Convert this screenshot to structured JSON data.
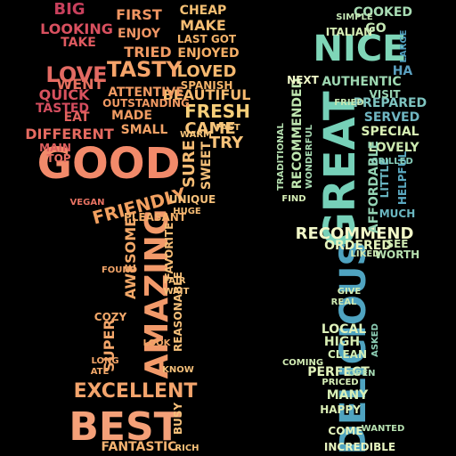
{
  "background": "#000000",
  "fork_words": [
    {
      "text": "GOOD",
      "color": "#f28a6a"
    },
    {
      "text": "AMAZING",
      "color": "#f29a6a"
    },
    {
      "text": "BEST",
      "color": "#f4a078"
    },
    {
      "text": "EXCELLENT",
      "color": "#f3a46c"
    },
    {
      "text": "FRIENDLY",
      "color": "#f2a060"
    },
    {
      "text": "TASTY",
      "color": "#f5a46a"
    },
    {
      "text": "LOVE",
      "color": "#e36a63"
    },
    {
      "text": "FRESH",
      "color": "#f7cf7a"
    },
    {
      "text": "CAME",
      "color": "#f6c47a"
    },
    {
      "text": "TRY",
      "color": "#f6c27a"
    },
    {
      "text": "LOVED",
      "color": "#f5b86f"
    },
    {
      "text": "BEAUTIFUL",
      "color": "#f6ba70"
    },
    {
      "text": "ENJOYED",
      "color": "#f4ae66"
    },
    {
      "text": "SPANISH",
      "color": "#f5b46a"
    },
    {
      "text": "CHEAP",
      "color": "#f5c074"
    },
    {
      "text": "MAKE",
      "color": "#f5bd73"
    },
    {
      "text": "LAST GOT",
      "color": "#f3b26a"
    },
    {
      "text": "FIRST",
      "color": "#f09662"
    },
    {
      "text": "ENJOY",
      "color": "#ef9564"
    },
    {
      "text": "TRIED",
      "color": "#f09a63"
    },
    {
      "text": "LOOKING",
      "color": "#d9505f"
    },
    {
      "text": "TAKE",
      "color": "#df5a60"
    },
    {
      "text": "BIG",
      "color": "#c7405c"
    },
    {
      "text": "WENT",
      "color": "#e6705f"
    },
    {
      "text": "QUICK",
      "color": "#d8525e"
    },
    {
      "text": "TASTED",
      "color": "#d44d5e"
    },
    {
      "text": "EAT",
      "color": "#e1625e"
    },
    {
      "text": "DIFFERENT",
      "color": "#e56a60"
    },
    {
      "text": "MAIN",
      "color": "#de5e5e"
    },
    {
      "text": "TOP",
      "color": "#e66d62"
    },
    {
      "text": "ATTENTIVE",
      "color": "#f09a62"
    },
    {
      "text": "OUTSTANDING",
      "color": "#f09962"
    },
    {
      "text": "MADE",
      "color": "#f09b62"
    },
    {
      "text": "SMALL",
      "color": "#f2a266"
    },
    {
      "text": "SURE",
      "color": "#f6bc74"
    },
    {
      "text": "SWEET",
      "color": "#f6c17a"
    },
    {
      "text": "UNIQUE",
      "color": "#f6c07a"
    },
    {
      "text": "HUGE",
      "color": "#f6bc74"
    },
    {
      "text": "PLEASANT",
      "color": "#f4b06a"
    },
    {
      "text": "AWESOME",
      "color": "#f3a868"
    },
    {
      "text": "FAVORITE",
      "color": "#f5bb74"
    },
    {
      "text": "REASONABLE",
      "color": "#f6c07a"
    },
    {
      "text": "SUPER",
      "color": "#f3a66a"
    },
    {
      "text": "COZY",
      "color": "#f3a86a"
    },
    {
      "text": "FANTASTIC",
      "color": "#f5b472"
    },
    {
      "text": "BUSY",
      "color": "#f6c07a"
    },
    {
      "text": "RICH",
      "color": "#f6c27a"
    },
    {
      "text": "KNOW",
      "color": "#f6c07a"
    },
    {
      "text": "ATE",
      "color": "#f2a86a"
    },
    {
      "text": "FOUND",
      "color": "#f2a468"
    },
    {
      "text": "LONG",
      "color": "#f1a468"
    },
    {
      "text": "LOOK",
      "color": "#f2a868"
    },
    {
      "text": "FAIR",
      "color": "#f6c07a"
    },
    {
      "text": "WAIT",
      "color": "#f6c07a"
    },
    {
      "text": "WARM",
      "color": "#f6c47a"
    },
    {
      "text": "FAST",
      "color": "#f6c47a"
    },
    {
      "text": "VEGAN",
      "color": "#e77262"
    }
  ],
  "knife_words": [
    {
      "text": "GREAT",
      "color": "#76d0b8"
    },
    {
      "text": "NICE",
      "color": "#7fd6b8"
    },
    {
      "text": "DELICIOUS",
      "color": "#4fa3c0"
    },
    {
      "text": "RECOMMEND",
      "color": "#f2f8c8"
    },
    {
      "text": "RECOMMENDED",
      "color": "#bfe6b0"
    },
    {
      "text": "AUTHENTIC",
      "color": "#9ed8b2"
    },
    {
      "text": "PREPARED",
      "color": "#7ec4c0"
    },
    {
      "text": "SERVED",
      "color": "#6fb6c2"
    },
    {
      "text": "SPECIAL",
      "color": "#d8f0b4"
    },
    {
      "text": "LOVELY",
      "color": "#cce9b0"
    },
    {
      "text": "AFFORDABLE",
      "color": "#93d3b4"
    },
    {
      "text": "LITTLE",
      "color": "#68b4c0"
    },
    {
      "text": "HELPFUL",
      "color": "#5aa8c0"
    },
    {
      "text": "MUCH",
      "color": "#6ab6c0"
    },
    {
      "text": "ORDERED",
      "color": "#e6f4bc"
    },
    {
      "text": "SEE",
      "color": "#cfe9b2"
    },
    {
      "text": "WORTH",
      "color": "#b6e0b0"
    },
    {
      "text": "LOCAL",
      "color": "#dff2ba"
    },
    {
      "text": "HIGH",
      "color": "#d8efb4"
    },
    {
      "text": "CLEAN",
      "color": "#d2edb4"
    },
    {
      "text": "PERFECT",
      "color": "#e0f2ba"
    },
    {
      "text": "MANY",
      "color": "#d8f0b6"
    },
    {
      "text": "HAPPY",
      "color": "#dcefb6"
    },
    {
      "text": "COME",
      "color": "#e4f4bc"
    },
    {
      "text": "INCREDIBLE",
      "color": "#e8f5c0"
    },
    {
      "text": "COOKED",
      "color": "#a8dcb4"
    },
    {
      "text": "ITALIAN",
      "color": "#d8efb6"
    },
    {
      "text": "GO",
      "color": "#c4e6b4"
    },
    {
      "text": "HA",
      "color": "#5aa0c0"
    },
    {
      "text": "NEXT",
      "color": "#f0f8c8"
    },
    {
      "text": "VISIT",
      "color": "#9ad6b4"
    },
    {
      "text": "FRIED",
      "color": "#c8e8b2"
    },
    {
      "text": "FIND",
      "color": "#d6eeb6"
    },
    {
      "text": "COMING",
      "color": "#d2ecb4"
    },
    {
      "text": "GIVE",
      "color": "#d4eeb6"
    },
    {
      "text": "REAL",
      "color": "#cfe9b2"
    },
    {
      "text": "TRADITIONAL",
      "color": "#b6e0b0"
    },
    {
      "text": "WONDERFUL",
      "color": "#a8dab2"
    },
    {
      "text": "GRILLED",
      "color": "#86ccb8"
    },
    {
      "text": "LARGE",
      "color": "#4f9ebe"
    },
    {
      "text": "SIMPLE",
      "color": "#c4e6b4"
    },
    {
      "text": "ASKED",
      "color": "#8ecfb6"
    },
    {
      "text": "OPEN",
      "color": "#a6dab4"
    },
    {
      "text": "PRICED",
      "color": "#d6eeb6"
    },
    {
      "text": "LIKED",
      "color": "#cfe9b2"
    },
    {
      "text": "WANTED",
      "color": "#b6e0b0"
    }
  ]
}
